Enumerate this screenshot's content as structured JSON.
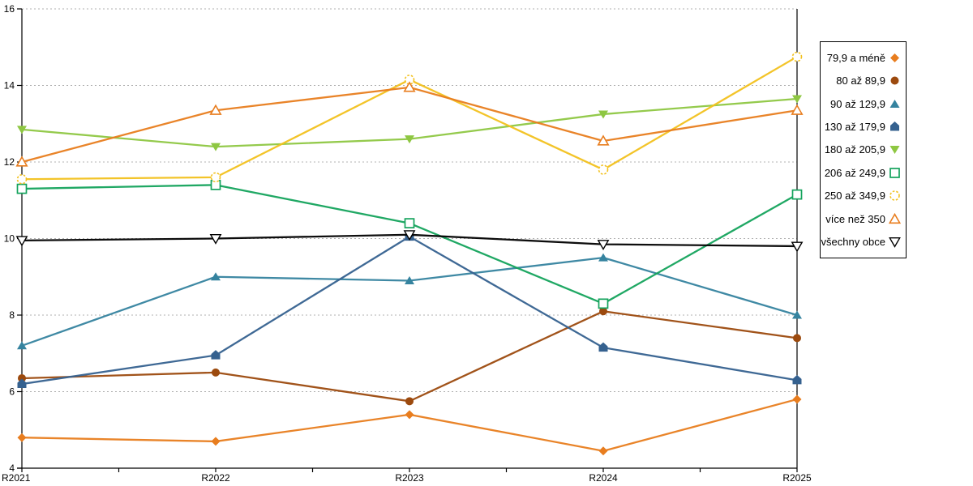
{
  "chart_data": {
    "type": "line",
    "title": "",
    "categories": [
      "R2021",
      "R2022",
      "R2023",
      "R2024",
      "R2025"
    ],
    "ylim": [
      4,
      16
    ],
    "yticks": [
      4,
      6,
      8,
      10,
      12,
      14,
      16
    ],
    "grid": "horizontal-dotted",
    "legend_position": "right",
    "series": [
      {
        "name": "79,9 a méně",
        "marker": "diamond-filled",
        "color": "#E87D1E",
        "values": [
          4.8,
          4.7,
          5.4,
          4.45,
          5.8
        ]
      },
      {
        "name": "80 až 89,9",
        "marker": "circle-filled",
        "color": "#9C4A0E",
        "values": [
          6.35,
          6.5,
          5.75,
          8.1,
          7.4
        ]
      },
      {
        "name": "90 až 129,9",
        "marker": "triangle-up-filled",
        "color": "#35839F",
        "values": [
          7.2,
          9.0,
          8.9,
          9.5,
          8.0
        ]
      },
      {
        "name": "130 až 179,9",
        "marker": "pentagon-filled",
        "color": "#35618F",
        "values": [
          6.2,
          6.95,
          10.05,
          7.15,
          6.3
        ]
      },
      {
        "name": "180 až 205,9",
        "marker": "triangle-down-filled",
        "color": "#8EC742",
        "values": [
          12.85,
          12.4,
          12.6,
          13.25,
          13.65
        ]
      },
      {
        "name": "206 až 249,9",
        "marker": "square-open",
        "color": "#14A35C",
        "values": [
          11.3,
          11.4,
          10.4,
          8.3,
          11.15
        ]
      },
      {
        "name": "250 až 349,9",
        "marker": "circle-open-dashed",
        "color": "#F2C11E",
        "values": [
          11.55,
          11.6,
          14.15,
          11.8,
          14.75
        ]
      },
      {
        "name": "více než 350",
        "marker": "triangle-up-open",
        "color": "#E87D1E",
        "values": [
          12.0,
          13.35,
          13.95,
          12.55,
          13.35
        ]
      },
      {
        "name": "všechny obce",
        "marker": "triangle-down-open",
        "color": "#000000",
        "values": [
          9.95,
          10.0,
          10.1,
          9.85,
          9.8
        ]
      }
    ]
  }
}
